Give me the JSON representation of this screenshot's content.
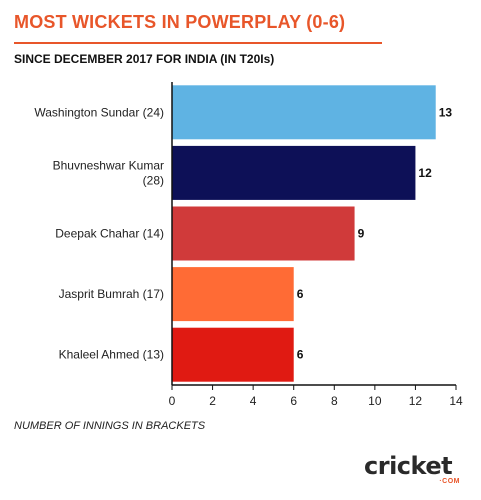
{
  "title": "MOST WICKETS IN POWERPLAY (0-6)",
  "subtitle": "SINCE DECEMBER 2017 FOR INDIA (IN T20Is)",
  "note": "NUMBER OF INNINGS IN BRACKETS",
  "logo": {
    "text": "cricket",
    "sub": "·COM"
  },
  "chart_data": {
    "type": "bar",
    "orientation": "horizontal",
    "categories": [
      "Washington Sundar (24)",
      "Bhuvneshwar Kumar (28)",
      "Deepak Chahar (14)",
      "Jasprit Bumrah (17)",
      "Khaleel Ahmed (13)"
    ],
    "category_lines": [
      [
        "Washington Sundar (24)"
      ],
      [
        "Bhuvneshwar Kumar",
        "(28)"
      ],
      [
        "Deepak Chahar (14)"
      ],
      [
        "Jasprit Bumrah (17)"
      ],
      [
        "Khaleel Ahmed (13)"
      ]
    ],
    "values": [
      13,
      12,
      9,
      6,
      6
    ],
    "colors": [
      "#5fb3e3",
      "#0d1057",
      "#d03a3a",
      "#ff6b35",
      "#e01a12"
    ],
    "xlim": [
      0,
      14
    ],
    "xticks": [
      "0",
      "2",
      "4",
      "6",
      "8",
      "10",
      "12",
      "14"
    ],
    "legend": "none",
    "grid": false
  }
}
